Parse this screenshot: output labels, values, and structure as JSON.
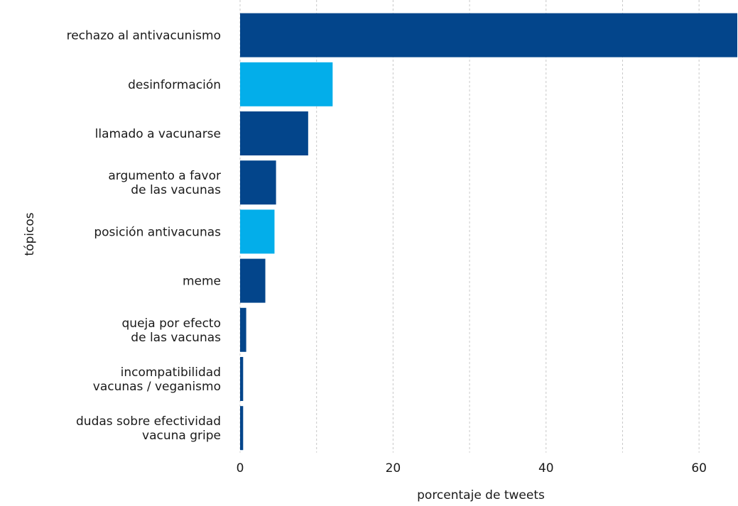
{
  "chart_data": {
    "type": "bar",
    "orientation": "horizontal",
    "xlabel": "porcentaje de tweets",
    "ylabel": "tópicos",
    "xlim": [
      0,
      65
    ],
    "xticks": [
      0,
      20,
      40,
      60
    ],
    "grid": "vertical dashed",
    "categories": [
      [
        "rechazo al antivacunismo"
      ],
      [
        "desinformación"
      ],
      [
        "llamado a vacunarse"
      ],
      [
        "argumento a favor",
        "de las vacunas"
      ],
      [
        "posición antivacunas"
      ],
      [
        "meme"
      ],
      [
        "queja por efecto",
        "de las vacunas"
      ],
      [
        "incompatibilidad",
        "vacunas / veganismo"
      ],
      [
        "dudas sobre efectividad",
        "vacuna gripe"
      ]
    ],
    "values": [
      65,
      12.1,
      8.9,
      4.7,
      4.5,
      3.3,
      0.8,
      0.4,
      0.4
    ],
    "bar_colors": [
      "#03458b",
      "#03aeea",
      "#03458b",
      "#03458b",
      "#03aeea",
      "#03458b",
      "#03458b",
      "#03458b",
      "#03458b"
    ]
  }
}
